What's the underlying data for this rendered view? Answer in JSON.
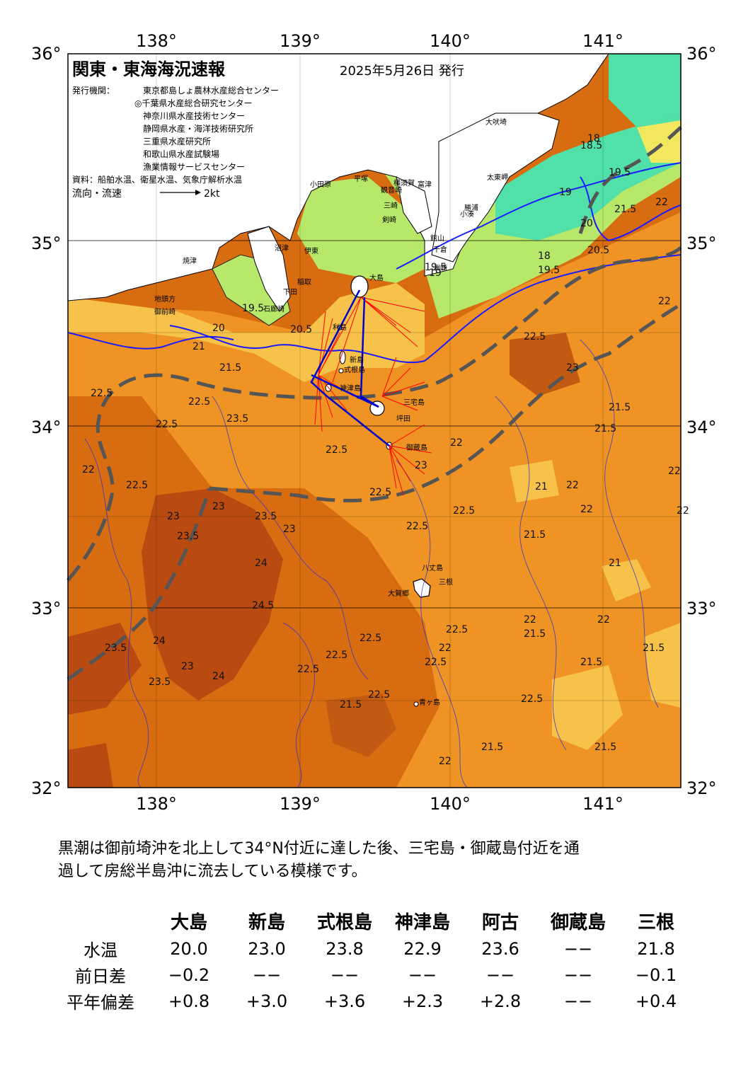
{
  "map": {
    "title": "関東・東海海況速報",
    "issue_date": "2025年5月26日 発行",
    "issuer_label": "発行機関：",
    "issuers": [
      "東京都島しょ農林水産総合センター",
      "◎千葉県水産総合研究センター",
      "神奈川県水産技術センター",
      "静岡県水産・海洋技術研究所",
      "三重県水産研究所",
      "和歌山県水産試験場",
      "漁業情報サービスセンター"
    ],
    "sources": "資料：船舶水温、衛星水温、気象庁解析水温",
    "current_legend_label": "流向・流速",
    "current_legend_speed": "2kt",
    "lon_labels": [
      "138°",
      "139°",
      "140°",
      "141°"
    ],
    "lat_labels": [
      "36°",
      "35°",
      "34°",
      "33°",
      "32°"
    ],
    "colors": {
      "water_warmest": "#b84a12",
      "water_warm": "#d86c10",
      "water_mid": "#ef9424",
      "water_cool": "#f6c24a",
      "water_cooler": "#f2e860",
      "water_green": "#b7e86a",
      "water_teal": "#50e0a8",
      "kuroshio_axis": "#555555",
      "isotherm": "#1a1aff",
      "current_vector": "#ff0000"
    },
    "place_names": [
      "大吠埼",
      "太東岬",
      "勝浦",
      "小湊",
      "千倉",
      "館山",
      "洲崎",
      "富津",
      "横須賀",
      "観音崎",
      "剣崎",
      "三崎",
      "平塚",
      "小田原",
      "沼津",
      "伊東",
      "稲取",
      "下田",
      "石廊崎",
      "御前崎",
      "地頭方",
      "焼津",
      "大島",
      "利島",
      "新島",
      "式根島",
      "神津島",
      "三宅島",
      "御蔵島",
      "八丈島",
      "三根",
      "大賀郷",
      "青ヶ島",
      "坪田"
    ],
    "isotherm_labels": [
      "18",
      "18.5",
      "19",
      "19.5",
      "20",
      "20.5",
      "21",
      "21.5",
      "22",
      "22.5",
      "23",
      "23.5",
      "24",
      "24.5"
    ]
  },
  "description": [
    "黒潮は御前埼沖を北上して34°N付近に達した後、三宅島・御蔵島付近を通",
    "過して房総半島沖に流去している模様です。"
  ],
  "table": {
    "stations": [
      "大島",
      "新島",
      "式根島",
      "神津島",
      "阿古",
      "御蔵島",
      "三根"
    ],
    "rows": [
      {
        "label": "水温",
        "values": [
          "20.0",
          "23.0",
          "23.8",
          "22.9",
          "23.6",
          "−−",
          "21.8"
        ]
      },
      {
        "label": "前日差",
        "values": [
          "−0.2",
          "−−",
          "−−",
          "−−",
          "−−",
          "−−",
          "−0.1"
        ]
      },
      {
        "label": "平年偏差",
        "values": [
          "+0.8",
          "+3.0",
          "+3.6",
          "+2.3",
          "+2.8",
          "−−",
          "+0.4"
        ]
      }
    ]
  }
}
